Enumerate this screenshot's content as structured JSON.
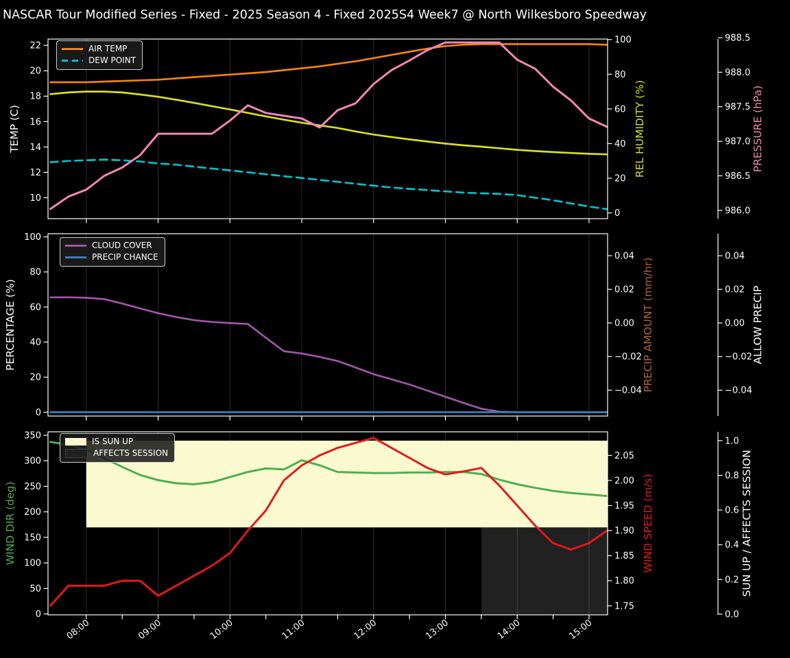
{
  "title": "NASCAR Tour Modified Series - Fixed - 2025 Season 4 - Fixed 2025S4 Week7 @ North Wilkesboro Speedway",
  "colors": {
    "background": "#000000",
    "text": "#ffffff",
    "grid": "rgba(255,255,255,0.18)",
    "spine": "#ffffff"
  },
  "chart_data": {
    "type": "line",
    "x": [
      "07:30",
      "07:45",
      "08:00",
      "08:15",
      "08:30",
      "08:45",
      "09:00",
      "09:15",
      "09:30",
      "09:45",
      "10:00",
      "10:15",
      "10:30",
      "10:45",
      "11:00",
      "11:15",
      "11:30",
      "11:45",
      "12:00",
      "12:15",
      "12:30",
      "12:45",
      "13:00",
      "13:15",
      "13:30",
      "13:45",
      "14:00",
      "14:15",
      "14:30",
      "14:45",
      "15:00",
      "15:15"
    ],
    "x_tick_labels": [
      "08:00",
      "09:00",
      "10:00",
      "11:00",
      "12:00",
      "13:00",
      "14:00",
      "15:00"
    ],
    "x_minor_ticks": [
      "08:30",
      "09:30",
      "10:30",
      "11:30",
      "12:30",
      "13:30",
      "14:30"
    ],
    "panels": [
      {
        "id": "temperature",
        "legend": [
          {
            "label": "AIR TEMP",
            "color": "#f5820d",
            "style": "line"
          },
          {
            "label": "DEW POINT",
            "color": "#00c3cc",
            "style": "dashed-line"
          }
        ],
        "axes": [
          {
            "side": "left",
            "label": "TEMP (C)",
            "label_color": "#ffffff",
            "ticks": [
              10,
              12,
              14,
              16,
              18,
              20,
              22
            ],
            "range": [
              8.35,
              22.5
            ],
            "decimals": 0
          },
          {
            "side": "right",
            "label": "REL HUMIDITY (%)",
            "label_color": "#dcdd1f",
            "ticks": [
              0,
              20,
              40,
              60,
              80,
              100
            ],
            "range": [
              -3.3,
              100.3
            ],
            "decimals": 0
          },
          {
            "side": "right2",
            "label": "PRESSURE (hPa)",
            "label_color": "#f287b7",
            "ticks": [
              986.0,
              986.5,
              987.0,
              987.5,
              988.0,
              988.5
            ],
            "range": [
              985.88,
              988.48
            ],
            "decimals": 1
          }
        ],
        "series": [
          {
            "name": "AIR TEMP",
            "axis": 0,
            "color": "#f5820d",
            "dash": null,
            "width": 2.7,
            "values": [
              19.1,
              19.1,
              19.1,
              19.15,
              19.2,
              19.25,
              19.3,
              19.4,
              19.5,
              19.6,
              19.7,
              19.8,
              19.9,
              20.05,
              20.2,
              20.35,
              20.55,
              20.75,
              21.0,
              21.25,
              21.5,
              21.75,
              21.95,
              22.05,
              22.1,
              22.1,
              22.1,
              22.1,
              22.1,
              22.1,
              22.1,
              22.05
            ]
          },
          {
            "name": "DEW POINT",
            "axis": 0,
            "color": "#00c3cc",
            "dash": "11 7",
            "width": 2.7,
            "values": [
              12.8,
              12.9,
              12.95,
              13.0,
              12.95,
              12.85,
              12.7,
              12.6,
              12.45,
              12.3,
              12.15,
              12.0,
              11.85,
              11.7,
              11.55,
              11.4,
              11.25,
              11.1,
              10.95,
              10.8,
              10.7,
              10.6,
              10.5,
              10.4,
              10.35,
              10.3,
              10.2,
              10.0,
              9.8,
              9.55,
              9.3,
              9.1
            ]
          },
          {
            "name": "REL HUMIDITY",
            "axis": 1,
            "color": "#dcdd1f",
            "dash": null,
            "width": 2.7,
            "values": [
              68.5,
              69.5,
              70,
              70,
              69.5,
              68.3,
              67,
              65.3,
              63.5,
              61.6,
              59.7,
              57.7,
              55.7,
              53.8,
              52,
              50.5,
              49,
              47,
              45.2,
              43.8,
              42.4,
              41.2,
              40,
              39,
              38.2,
              37.3,
              36.4,
              35.7,
              35.1,
              34.6,
              34.1,
              33.8
            ]
          },
          {
            "name": "PRESSURE",
            "axis": 2,
            "color": "#f287b7",
            "dash": null,
            "width": 3,
            "values": [
              986.02,
              986.2,
              986.3,
              986.5,
              986.62,
              986.8,
              987.11,
              987.11,
              987.11,
              987.11,
              987.3,
              987.52,
              987.41,
              987.37,
              987.33,
              987.2,
              987.45,
              987.55,
              987.83,
              988.03,
              988.17,
              988.32,
              988.43,
              988.43,
              988.43,
              988.43,
              988.18,
              988.05,
              987.79,
              987.59,
              987.33,
              987.21
            ]
          }
        ],
        "bands": []
      },
      {
        "id": "precipitation",
        "legend": [
          {
            "label": "CLOUD COVER",
            "color": "#a055a8",
            "style": "line"
          },
          {
            "label": "PRECIP CHANCE",
            "color": "#3a7ebf",
            "style": "line"
          }
        ],
        "axes": [
          {
            "side": "left",
            "label": "PERCENTAGE (%)",
            "label_color": "#ffffff",
            "ticks": [
              0,
              20,
              40,
              60,
              80,
              100
            ],
            "range": [
              -2.2,
              101.8
            ],
            "decimals": 0
          },
          {
            "side": "right",
            "label": "PRECIP AMOUNT (mm/hr)",
            "label_color": "#b5652c",
            "ticks": [
              0.04,
              0.02,
              0.0,
              -0.02,
              -0.04
            ],
            "range": [
              -0.0554,
              0.0531
            ],
            "decimals": 2
          },
          {
            "side": "right2",
            "label": "ALLOW PRECIP",
            "label_color": "#ffffff",
            "ticks": [
              0.04,
              0.02,
              0.0,
              -0.02,
              -0.04
            ],
            "range": [
              -0.0554,
              0.0531
            ],
            "decimals": 2
          }
        ],
        "series": [
          {
            "name": "CLOUD COVER",
            "axis": 0,
            "color": "#a055a8",
            "dash": null,
            "width": 2.7,
            "values": [
              65.5,
              65.5,
              65.3,
              64.5,
              62,
              59.2,
              56.5,
              54.3,
              52.5,
              51.5,
              50.8,
              50.3,
              42.5,
              34.8,
              33.5,
              31.5,
              29.2,
              25.5,
              21.7,
              18.8,
              15.8,
              12.3,
              8.8,
              5.3,
              2,
              0.3,
              0,
              0,
              0,
              0,
              0,
              0
            ]
          },
          {
            "name": "PRECIP CHANCE",
            "axis": 0,
            "color": "#3a7ebf",
            "dash": null,
            "width": 2.7,
            "values": [
              0,
              0,
              0,
              0,
              0,
              0,
              0,
              0,
              0,
              0,
              0,
              0,
              0,
              0,
              0,
              0,
              0,
              0,
              0,
              0,
              0,
              0,
              0,
              0,
              0,
              0,
              0,
              0,
              0,
              0,
              0,
              0
            ]
          }
        ],
        "bands": []
      },
      {
        "id": "wind-sun",
        "legend": [
          {
            "label": "IS SUN UP",
            "color": "#fbf9cf",
            "style": "patch"
          },
          {
            "label": "AFFECTS SESSION",
            "color": "#212121",
            "style": "patch"
          }
        ],
        "axes": [
          {
            "side": "left",
            "label": "WIND DIR (deg)",
            "label_color": "#4caf50",
            "ticks": [
              0,
              50,
              100,
              150,
              200,
              250,
              300,
              350
            ],
            "range": [
              -1.7,
              356.7
            ],
            "decimals": 0
          },
          {
            "side": "right",
            "label": "WIND SPEED (m/s)",
            "label_color": "#e11919",
            "ticks": [
              1.75,
              1.8,
              1.85,
              1.9,
              1.95,
              2.0,
              2.05
            ],
            "range": [
              1.732,
              2.097
            ],
            "decimals": 2
          },
          {
            "side": "right2",
            "label": "SUN UP / AFFECTS SESSION",
            "label_color": "#ffffff",
            "ticks": [
              0.0,
              0.2,
              0.4,
              0.6,
              0.8,
              1.0
            ],
            "range": [
              -0.004,
              1.051
            ],
            "decimals": 1
          }
        ],
        "series": [
          {
            "name": "WIND DIR",
            "axis": 0,
            "color": "#4caf50",
            "dash": null,
            "width": 3,
            "values": [
              337,
              331,
              322,
              305,
              288,
              272,
              262,
              256,
              254,
              258,
              268,
              278,
              285,
              283,
              301,
              291,
              278,
              277,
              276,
              276,
              277,
              277,
              278,
              278,
              274,
              263,
              254,
              247,
              241,
              237,
              234,
              231
            ]
          },
          {
            "name": "WIND SPEED",
            "axis": 1,
            "color": "#e11919",
            "dash": null,
            "width": 3,
            "values": [
              1.75,
              1.79,
              1.79,
              1.79,
              1.8,
              1.8,
              1.77,
              1.79,
              1.81,
              1.83,
              1.855,
              1.9,
              1.94,
              2.0,
              2.03,
              2.05,
              2.065,
              2.075,
              2.085,
              2.065,
              2.045,
              2.025,
              2.012,
              2.018,
              2.025,
              1.99,
              1.95,
              1.91,
              1.875,
              1.862,
              1.875,
              1.9
            ]
          },
          {
            "name": "SUN UP",
            "axis": 2,
            "color": "#fbf9cf",
            "dash": null,
            "width": 0,
            "hidden": true,
            "values": [
              0,
              0,
              1,
              1,
              1,
              1,
              1,
              1,
              1,
              1,
              1,
              1,
              1,
              1,
              1,
              1,
              1,
              1,
              1,
              1,
              1,
              1,
              1,
              1,
              1,
              1,
              1,
              1,
              1,
              1,
              1,
              1
            ]
          },
          {
            "name": "AFFECTS SESSION",
            "axis": 2,
            "color": "#212121",
            "dash": null,
            "width": 0,
            "hidden": true,
            "values": [
              0,
              0,
              0,
              0,
              0,
              0,
              0,
              0,
              0,
              0,
              0,
              0,
              0,
              0,
              0,
              0,
              0,
              0,
              0,
              0,
              0,
              0,
              0,
              0,
              1,
              1,
              1,
              1,
              1,
              1,
              1,
              1
            ]
          }
        ],
        "bands": [
          {
            "label": "IS SUN UP",
            "color": "#fbf9cf",
            "x_start": "08:00",
            "x_end": "right",
            "axis": 2,
            "y_from": 0.5,
            "y_to": 1.0
          },
          {
            "label": "AFFECTS SESSION",
            "color": "#212121",
            "x_start": "13:30",
            "x_end": "right",
            "axis": 2,
            "y_from": 0.0,
            "y_to": 0.5
          }
        ]
      }
    ]
  }
}
